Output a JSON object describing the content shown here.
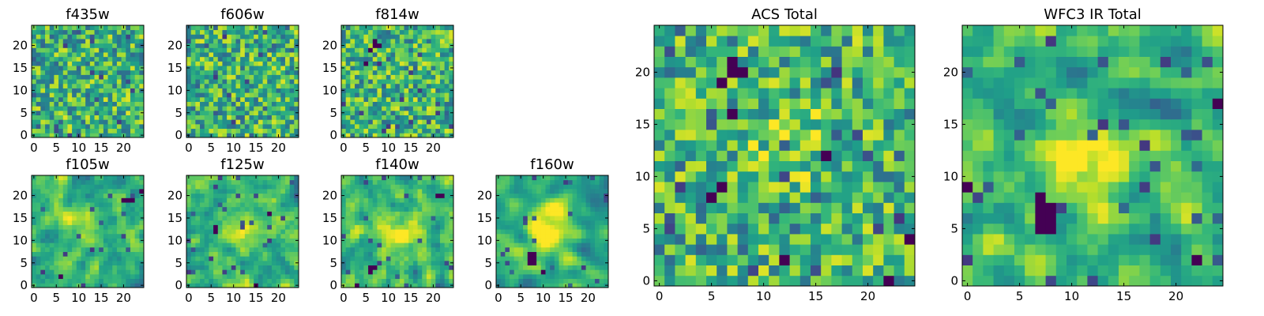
{
  "figure": {
    "colormap": "viridis",
    "colormap_stops": [
      "#440154",
      "#482878",
      "#3e4a89",
      "#31688e",
      "#26828e",
      "#1f9e89",
      "#35b779",
      "#6ece58",
      "#b5de2b",
      "#fde725"
    ]
  },
  "chart_data": [
    {
      "type": "heatmap",
      "title": "f435w",
      "grid_size": 25,
      "xlim": [
        0,
        24
      ],
      "ylim": [
        0,
        24
      ],
      "xticks": [
        "0",
        "5",
        "10",
        "15",
        "20"
      ],
      "yticks": [
        "0",
        "5",
        "10",
        "15",
        "20"
      ],
      "seed": 11,
      "smooth": 0,
      "low_pixels": [],
      "blob": null
    },
    {
      "type": "heatmap",
      "title": "f606w",
      "grid_size": 25,
      "xlim": [
        0,
        24
      ],
      "ylim": [
        0,
        24
      ],
      "xticks": [
        "0",
        "5",
        "10",
        "15",
        "20"
      ],
      "yticks": [
        "0",
        "5",
        "10",
        "15",
        "20"
      ],
      "seed": 23,
      "smooth": 0,
      "low_pixels": [],
      "blob": null
    },
    {
      "type": "heatmap",
      "title": "f814w",
      "grid_size": 25,
      "xlim": [
        0,
        24
      ],
      "ylim": [
        0,
        24
      ],
      "xticks": [
        "0",
        "5",
        "10",
        "15",
        "20"
      ],
      "yticks": [
        "0",
        "5",
        "10",
        "15",
        "20"
      ],
      "seed": 37,
      "smooth": 0,
      "low_pixels": [
        [
          7,
          21
        ],
        [
          8,
          20
        ],
        [
          7,
          20
        ],
        [
          6,
          19
        ],
        [
          5,
          16
        ]
      ],
      "blob": null
    },
    {
      "type": "heatmap",
      "title": "f105w",
      "grid_size": 25,
      "xlim": [
        0,
        24
      ],
      "ylim": [
        0,
        24
      ],
      "xticks": [
        "0",
        "5",
        "10",
        "15",
        "20"
      ],
      "yticks": [
        "0",
        "5",
        "10",
        "15",
        "20"
      ],
      "seed": 41,
      "smooth": 1,
      "low_pixels": [
        [
          24,
          21
        ],
        [
          22,
          19
        ],
        [
          21,
          19
        ],
        [
          20,
          19
        ],
        [
          6,
          2
        ]
      ],
      "blob": [
        12,
        13,
        0.22
      ]
    },
    {
      "type": "heatmap",
      "title": "f125w",
      "grid_size": 25,
      "xlim": [
        0,
        24
      ],
      "ylim": [
        0,
        24
      ],
      "xticks": [
        "0",
        "5",
        "10",
        "15",
        "20"
      ],
      "yticks": [
        "0",
        "5",
        "10",
        "15",
        "20"
      ],
      "seed": 53,
      "smooth": 1,
      "low_pixels": [
        [
          6,
          13
        ],
        [
          6,
          12
        ],
        [
          18,
          16
        ],
        [
          15,
          0
        ]
      ],
      "blob": [
        13,
        12,
        0.22
      ]
    },
    {
      "type": "heatmap",
      "title": "f140w",
      "grid_size": 25,
      "xlim": [
        0,
        24
      ],
      "ylim": [
        0,
        24
      ],
      "xticks": [
        "0",
        "5",
        "10",
        "15",
        "20"
      ],
      "yticks": [
        "0",
        "5",
        "10",
        "15",
        "20"
      ],
      "seed": 67,
      "smooth": 1,
      "low_pixels": [
        [
          6,
          4
        ],
        [
          6,
          3
        ],
        [
          7,
          4
        ],
        [
          21,
          20
        ],
        [
          22,
          20
        ],
        [
          3,
          0
        ]
      ],
      "blob": [
        13,
        12,
        0.25
      ]
    },
    {
      "type": "heatmap",
      "title": "f160w",
      "grid_size": 25,
      "xlim": [
        0,
        24
      ],
      "ylim": [
        0,
        24
      ],
      "xticks": [
        "0",
        "5",
        "10",
        "15",
        "20"
      ],
      "yticks": [
        "0",
        "5",
        "10",
        "15",
        "20"
      ],
      "seed": 71,
      "smooth": 2,
      "low_pixels": [
        [
          7,
          7
        ],
        [
          7,
          6
        ],
        [
          7,
          5
        ],
        [
          8,
          7
        ],
        [
          8,
          6
        ],
        [
          8,
          5
        ],
        [
          10,
          3
        ]
      ],
      "blob": [
        12,
        13,
        0.35
      ]
    },
    {
      "type": "heatmap",
      "title": "ACS Total",
      "grid_size": 25,
      "xlim": [
        0,
        24
      ],
      "ylim": [
        0,
        24
      ],
      "xticks": [
        "0",
        "5",
        "10",
        "15",
        "20"
      ],
      "yticks": [
        "0",
        "5",
        "10",
        "15",
        "20"
      ],
      "seed": 83,
      "smooth": 0,
      "low_pixels": [
        [
          7,
          21
        ],
        [
          8,
          20
        ],
        [
          7,
          20
        ],
        [
          6,
          19
        ],
        [
          7,
          16
        ],
        [
          16,
          12
        ],
        [
          5,
          8
        ],
        [
          12,
          2
        ],
        [
          22,
          0
        ],
        [
          24,
          4
        ],
        [
          6,
          9
        ]
      ],
      "blob": [
        13,
        13,
        0.18
      ]
    },
    {
      "type": "heatmap",
      "title": "WFC3 IR Total",
      "grid_size": 25,
      "xlim": [
        0,
        24
      ],
      "ylim": [
        0,
        24
      ],
      "xticks": [
        "0",
        "5",
        "10",
        "15",
        "20"
      ],
      "yticks": [
        "0",
        "5",
        "10",
        "15",
        "20"
      ],
      "seed": 97,
      "smooth": 1,
      "low_pixels": [
        [
          7,
          8
        ],
        [
          7,
          7
        ],
        [
          7,
          6
        ],
        [
          7,
          5
        ],
        [
          8,
          7
        ],
        [
          8,
          6
        ],
        [
          8,
          5
        ],
        [
          24,
          17
        ],
        [
          22,
          2
        ],
        [
          0,
          9
        ]
      ],
      "blob": [
        12,
        12,
        0.38
      ]
    }
  ]
}
